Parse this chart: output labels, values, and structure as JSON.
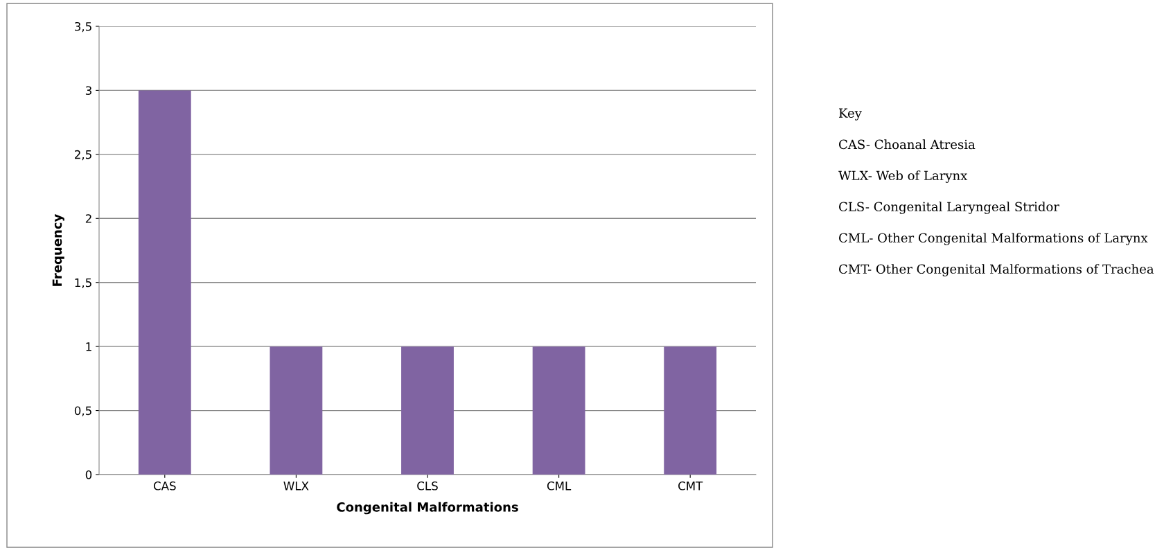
{
  "chart_data": {
    "type": "bar",
    "xlabel": "Congenital Malformations",
    "ylabel": "Frequency",
    "categories": [
      "CAS",
      "WLX",
      "CLS",
      "CML",
      "CMT"
    ],
    "values": [
      3,
      1,
      1,
      1,
      1
    ],
    "color": "#8064a2",
    "ylim": [
      0,
      3.5
    ],
    "yticks": [
      0,
      {
        "value": 0.5,
        "label": "0,5"
      },
      1,
      {
        "value": 1.5,
        "label": "1,5"
      },
      2,
      {
        "value": 2.5,
        "label": "2,5"
      },
      3,
      {
        "value": 3.5,
        "label": "3,5"
      }
    ],
    "grid": "y",
    "annotations": [
      "Key",
      "CAS- Choanal Atresia",
      "WLX- Web of Larynx",
      "CLS- Congenital Laryngeal Stridor",
      "CML- Other Congenital Malformations of Larynx",
      "CMT- Other Congenital Malformations of Trachea"
    ]
  }
}
